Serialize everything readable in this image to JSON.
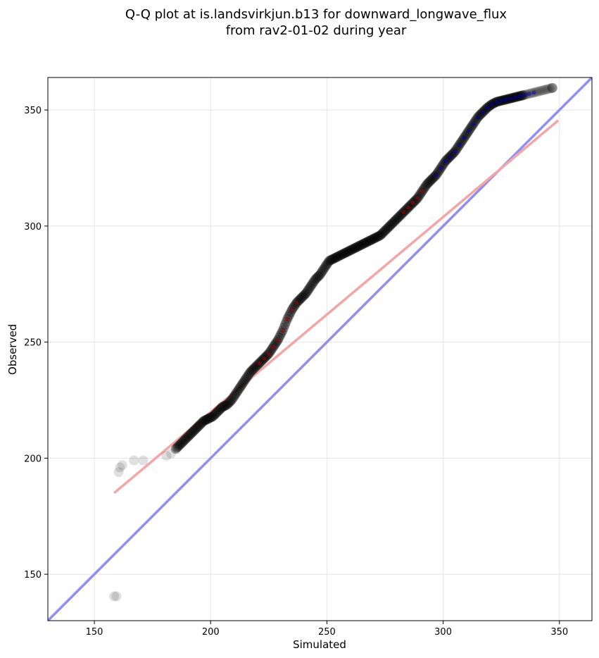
{
  "chart_data": {
    "type": "scatter",
    "title": "Q-Q plot at is.landsvirkjun.b13 for downward_longwave_flux",
    "subtitle": "from rav2-01-02 during year",
    "xlabel": "Simulated",
    "ylabel": "Observed",
    "xlim": [
      130,
      364
    ],
    "ylim": [
      130,
      364
    ],
    "xticks": [
      150,
      200,
      250,
      300,
      350
    ],
    "yticks": [
      150,
      200,
      250,
      300,
      350
    ],
    "grid": true,
    "reference_line": {
      "x": [
        130,
        364
      ],
      "y": [
        130,
        364
      ],
      "color": "#8f8fef"
    },
    "fit_line": {
      "x": [
        158.5,
        349.5
      ],
      "y": [
        185,
        345.5
      ],
      "color": "#f2a6a6"
    },
    "point_color": "#000000",
    "percentile_colors": {
      "low": "#b00000",
      "high": "#0000c0"
    },
    "quantiles": {
      "x": [
        158.5,
        159.5,
        160.5,
        161,
        162,
        167,
        171,
        181,
        183,
        185,
        187,
        189,
        191,
        193,
        195,
        197,
        199,
        201,
        203,
        205,
        207,
        209,
        211,
        213,
        215,
        217,
        219,
        221,
        223,
        225,
        227,
        229,
        231,
        233,
        235,
        237,
        239,
        241,
        243,
        245,
        247,
        249,
        251,
        253,
        255,
        257,
        259,
        261,
        263,
        265,
        267,
        269,
        271,
        273,
        275,
        277,
        279,
        281,
        283,
        285,
        287,
        289,
        291,
        293,
        295,
        297,
        299,
        301,
        303,
        305,
        307,
        309,
        311,
        313,
        315,
        317,
        319,
        321,
        323,
        325,
        327,
        329,
        331,
        333,
        335,
        337,
        339,
        341,
        343,
        345,
        347
      ],
      "y": [
        140.5,
        140.5,
        194,
        196,
        197,
        199,
        199,
        201,
        202,
        204,
        206,
        208,
        210,
        212,
        214,
        216,
        217,
        218,
        220,
        222,
        223,
        225,
        228,
        231,
        234,
        237,
        239,
        241,
        243,
        245,
        248,
        251,
        255,
        260,
        264,
        267,
        269,
        271,
        274,
        277,
        279,
        282,
        285,
        286,
        287,
        288,
        289,
        290,
        291,
        292,
        293,
        294,
        295,
        296,
        298,
        300,
        302,
        304,
        306,
        308,
        310,
        312,
        315,
        318,
        320,
        322,
        325,
        328,
        330,
        332,
        335,
        338,
        341,
        344,
        347,
        349,
        351,
        352.5,
        353.5,
        354,
        354.5,
        355,
        355.5,
        356,
        356.5,
        357,
        357.5,
        358,
        358.5,
        359,
        359.5
      ]
    }
  }
}
